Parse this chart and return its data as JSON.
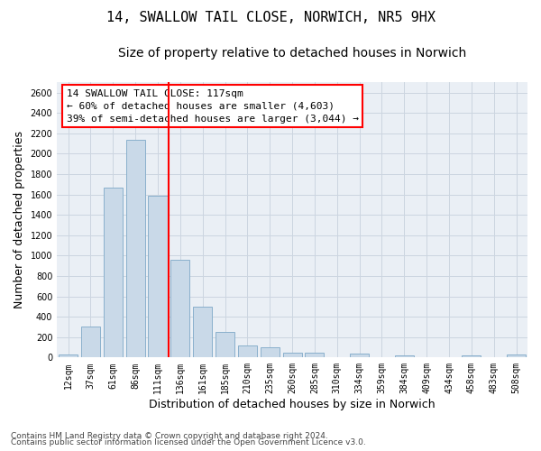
{
  "title_line1": "14, SWALLOW TAIL CLOSE, NORWICH, NR5 9HX",
  "title_line2": "Size of property relative to detached houses in Norwich",
  "xlabel": "Distribution of detached houses by size in Norwich",
  "ylabel": "Number of detached properties",
  "footnote1": "Contains HM Land Registry data © Crown copyright and database right 2024.",
  "footnote2": "Contains public sector information licensed under the Open Government Licence v3.0.",
  "categories": [
    "12sqm",
    "37sqm",
    "61sqm",
    "86sqm",
    "111sqm",
    "136sqm",
    "161sqm",
    "185sqm",
    "210sqm",
    "235sqm",
    "260sqm",
    "285sqm",
    "310sqm",
    "334sqm",
    "359sqm",
    "384sqm",
    "409sqm",
    "434sqm",
    "458sqm",
    "483sqm",
    "508sqm"
  ],
  "values": [
    30,
    300,
    1670,
    2140,
    1590,
    960,
    500,
    250,
    120,
    100,
    50,
    50,
    5,
    35,
    5,
    25,
    5,
    5,
    25,
    5,
    30
  ],
  "bar_color": "#c9d9e8",
  "bar_edge_color": "#8ab0cc",
  "vline_x_index": 4,
  "vline_color": "red",
  "annotation_box_text": "14 SWALLOW TAIL CLOSE: 117sqm\n← 60% of detached houses are smaller (4,603)\n39% of semi-detached houses are larger (3,044) →",
  "annotation_box_color": "red",
  "ylim": [
    0,
    2700
  ],
  "yticks": [
    0,
    200,
    400,
    600,
    800,
    1000,
    1200,
    1400,
    1600,
    1800,
    2000,
    2200,
    2400,
    2600
  ],
  "grid_color": "#ccd5e0",
  "background_color": "#eaeff5",
  "title_fontsize": 11,
  "subtitle_fontsize": 10,
  "ylabel_fontsize": 9,
  "xlabel_fontsize": 9,
  "tick_fontsize": 7,
  "annot_fontsize": 8
}
